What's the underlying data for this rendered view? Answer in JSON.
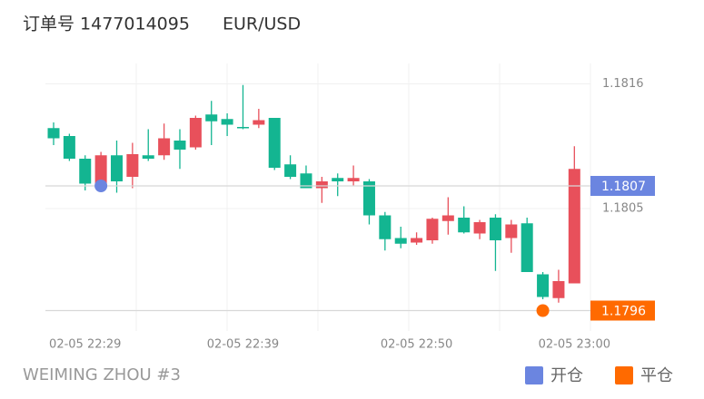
{
  "header": {
    "order": "订单号 1477014095",
    "symbol": "EUR/USD"
  },
  "footer": "WEIMING ZHOU #3",
  "chart_data": {
    "type": "candlestick",
    "categories": [
      null,
      null,
      "02-05 22:29",
      null,
      null,
      null,
      null,
      null,
      null,
      null,
      null,
      null,
      "02-05 22:39",
      null,
      null,
      null,
      null,
      null,
      null,
      null,
      null,
      null,
      null,
      "02-05 22:50",
      null,
      null,
      null,
      null,
      null,
      null,
      null,
      null,
      null,
      "02-05 23:00"
    ],
    "open": [
      1.18121,
      1.18114,
      1.18094,
      1.18072,
      1.18097,
      1.18078,
      1.18097,
      1.18097,
      1.1811,
      1.18104,
      1.18133,
      1.18129,
      1.18122,
      1.18124,
      1.1813,
      1.18089,
      1.18081,
      1.18068,
      1.18077,
      1.18074,
      1.18074,
      1.18044,
      1.18024,
      1.1802,
      1.18022,
      1.18039,
      1.18042,
      1.18028,
      1.18042,
      1.18024,
      1.18037,
      1.17992,
      1.17971,
      1.17984
    ],
    "high": [
      1.18126,
      1.18116,
      1.18097,
      1.181,
      1.1811,
      1.18108,
      1.1812,
      1.18125,
      1.1812,
      1.18132,
      1.18145,
      1.18134,
      1.18159,
      1.18138,
      1.1813,
      1.18097,
      1.18088,
      1.18078,
      1.18081,
      1.18088,
      1.18076,
      1.18047,
      1.18034,
      1.18029,
      1.18042,
      1.1806,
      1.18052,
      1.1804,
      1.18045,
      1.1804,
      1.18042,
      1.17994,
      1.17996,
      1.18105
    ],
    "low": [
      1.18106,
      1.18092,
      1.18066,
      1.18068,
      1.18064,
      1.18068,
      1.18092,
      1.18093,
      1.18085,
      1.18102,
      1.18106,
      1.18114,
      1.1812,
      1.18121,
      1.18084,
      1.18076,
      1.18068,
      1.18055,
      1.18061,
      1.1807,
      1.18036,
      1.18013,
      1.18015,
      1.18018,
      1.18019,
      1.18027,
      1.18028,
      1.18023,
      1.17995,
      1.18011,
      1.17994,
      1.1797,
      1.17967,
      1.17984
    ],
    "close": [
      1.18112,
      1.18094,
      1.18072,
      1.18097,
      1.18074,
      1.18098,
      1.18094,
      1.18112,
      1.18102,
      1.1813,
      1.18127,
      1.18124,
      1.18121,
      1.18128,
      1.18086,
      1.18078,
      1.18068,
      1.18074,
      1.18074,
      1.18077,
      1.18044,
      1.18023,
      1.18019,
      1.18024,
      1.18041,
      1.18044,
      1.18029,
      1.18038,
      1.18022,
      1.18036,
      1.17994,
      1.17972,
      1.17986,
      1.18085
    ],
    "up_color": "#e8505b",
    "down_color": "#13b591",
    "ylim": [
      1.17942,
      1.18178
    ],
    "yticks": [
      1.1816,
      1.1805
    ],
    "entry": {
      "label": "开仓",
      "price": 1.1807,
      "color": "#6b85e0"
    },
    "exit": {
      "label": "平仓",
      "price": 1.1796,
      "color": "#ff6a00"
    }
  }
}
